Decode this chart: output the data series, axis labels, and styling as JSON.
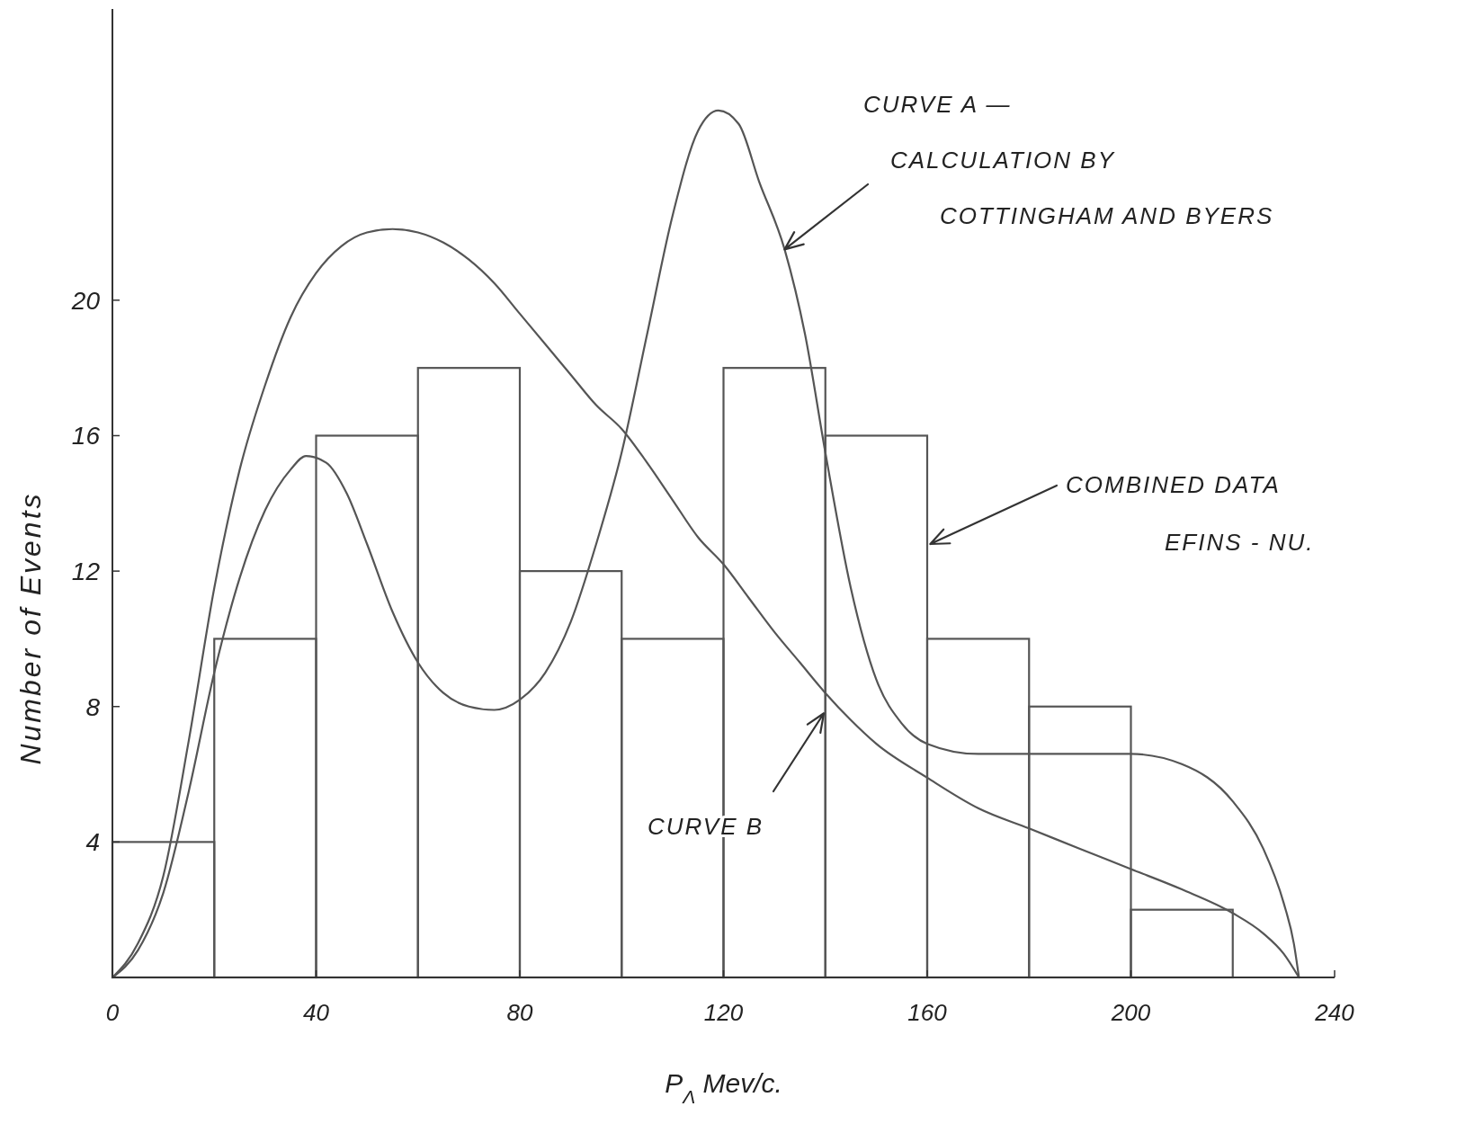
{
  "chart_data": {
    "type": "line",
    "xlabel": "P$_{Λ}$ Mev/c.",
    "ylabel": "Number of Events",
    "xlim": [
      0,
      240
    ],
    "ylim": [
      0,
      28.6
    ],
    "xticks": [
      0,
      40,
      80,
      120,
      160,
      200,
      240
    ],
    "yticks": [
      4,
      8,
      12,
      16,
      20
    ],
    "grid": false,
    "marker": "none",
    "line_style": "solid",
    "series": [
      {
        "type": "histogram",
        "color": "#555555",
        "bins": [
          0,
          20,
          40,
          60,
          80,
          100,
          120,
          140,
          160,
          180,
          200,
          220
        ],
        "values": [
          4,
          10,
          16,
          18,
          12,
          10,
          18,
          16,
          10,
          8,
          2
        ]
      },
      {
        "color": "#555555",
        "x": [
          0,
          5,
          10,
          15,
          20,
          25,
          30,
          35,
          38,
          42,
          46,
          50,
          55,
          60,
          65,
          70,
          75,
          80,
          85,
          90,
          95,
          100,
          105,
          110,
          115,
          119,
          123,
          127,
          132,
          136,
          140,
          145,
          150,
          155,
          160,
          170,
          180,
          190,
          200,
          210,
          220,
          226,
          230,
          232,
          233
        ],
        "values": [
          0,
          0.8,
          2.5,
          5.5,
          9,
          11.8,
          13.8,
          15,
          15.4,
          15.2,
          14.3,
          12.8,
          10.8,
          9.3,
          8.4,
          8,
          7.9,
          8.2,
          9,
          10.5,
          12.8,
          15.5,
          19,
          22.5,
          25,
          25.6,
          25.2,
          23.5,
          21.5,
          19,
          15.5,
          11.5,
          8.8,
          7.5,
          6.9,
          6.6,
          6.6,
          6.6,
          6.6,
          6.3,
          5.2,
          3.8,
          2.2,
          1,
          0
        ]
      },
      {
        "color": "#555555",
        "x": [
          0,
          5,
          10,
          15,
          20,
          25,
          30,
          35,
          40,
          45,
          50,
          55,
          60,
          65,
          70,
          75,
          80,
          85,
          90,
          95,
          100,
          105,
          110,
          115,
          120,
          125,
          130,
          135,
          140,
          145,
          150,
          160,
          170,
          180,
          190,
          200,
          210,
          220,
          226,
          230,
          233
        ],
        "values": [
          0,
          1,
          3,
          7,
          11.5,
          15,
          17.5,
          19.5,
          20.8,
          21.6,
          22,
          22.1,
          22,
          21.7,
          21.2,
          20.5,
          19.6,
          18.7,
          17.8,
          16.9,
          16.2,
          15.2,
          14.1,
          13,
          12.2,
          11.2,
          10.2,
          9.3,
          8.4,
          7.6,
          6.9,
          5.9,
          5,
          4.4,
          3.8,
          3.2,
          2.6,
          1.9,
          1.3,
          0.7,
          0
        ]
      }
    ],
    "annotations": [
      "CURVE A —",
      {
        "text": "CALCULATION BY",
        "x": 132,
        "y": 21.5
      },
      "COTTINGHAM AND BYERS",
      {
        "text": "COMBINED DATA",
        "x": 160.6,
        "y": 12.8
      },
      "EFINS - NU.",
      {
        "text": "CURVE B",
        "x": 139.7,
        "y": 7.8
      }
    ]
  }
}
